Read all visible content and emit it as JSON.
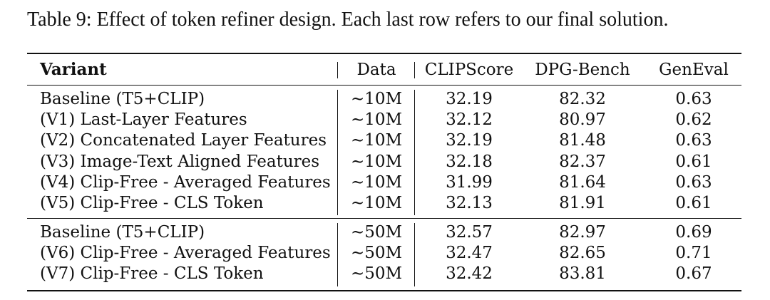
{
  "caption": "Table 9: Effect of token refiner design. Each last row refers to our final solution.",
  "table": {
    "headers": [
      "Variant",
      "Data",
      "CLIPScore",
      "DPG-Bench",
      "GenEval"
    ],
    "groups": [
      {
        "rows": [
          {
            "variant": "Baseline (T5+CLIP)",
            "data": "∼10M",
            "clipscore": "32.19",
            "dpg": "82.32",
            "geneval": "0.63"
          },
          {
            "variant": "(V1) Last-Layer Features",
            "data": "∼10M",
            "clipscore": "32.12",
            "dpg": "80.97",
            "geneval": "0.62"
          },
          {
            "variant": "(V2) Concatenated Layer Features",
            "data": "∼10M",
            "clipscore": "32.19",
            "dpg": "81.48",
            "geneval": "0.63"
          },
          {
            "variant": "(V3) Image-Text Aligned Features",
            "data": "∼10M",
            "clipscore": "32.18",
            "dpg": "82.37",
            "geneval": "0.61"
          },
          {
            "variant": "(V4) Clip-Free - Averaged Features",
            "data": "∼10M",
            "clipscore": "31.99",
            "dpg": "81.64",
            "geneval": "0.63"
          },
          {
            "variant": "(V5) Clip-Free - CLS Token",
            "data": "∼10M",
            "clipscore": "32.13",
            "dpg": "81.91",
            "geneval": "0.61"
          }
        ]
      },
      {
        "rows": [
          {
            "variant": "Baseline (T5+CLIP)",
            "data": "∼50M",
            "clipscore": "32.57",
            "dpg": "82.97",
            "geneval": "0.69"
          },
          {
            "variant": "(V6) Clip-Free - Averaged Features",
            "data": "∼50M",
            "clipscore": "32.47",
            "dpg": "82.65",
            "geneval": "0.71"
          },
          {
            "variant": "(V7) Clip-Free - CLS Token",
            "data": "∼50M",
            "clipscore": "32.42",
            "dpg": "83.81",
            "geneval": "0.67"
          }
        ]
      }
    ]
  }
}
